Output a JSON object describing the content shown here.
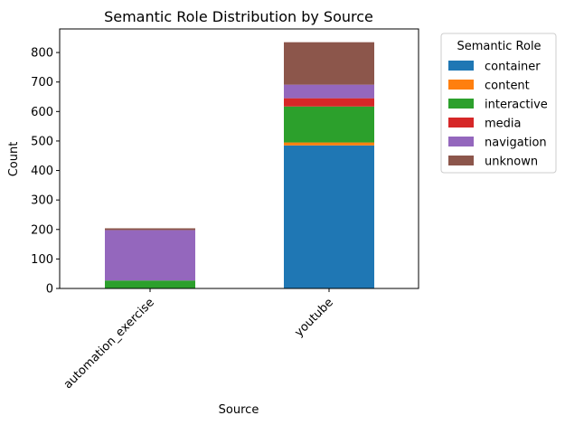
{
  "chart_data": {
    "type": "bar",
    "stacked": true,
    "title": "Semantic Role Distribution by Source",
    "xlabel": "Source",
    "ylabel": "Count",
    "categories": [
      "automation_exercise",
      "youtube"
    ],
    "ylim": [
      0,
      880
    ],
    "yticks": [
      0,
      100,
      200,
      300,
      400,
      500,
      600,
      700,
      800
    ],
    "legend_title": "Semantic Role",
    "legend_position": "outside-right",
    "grid": false,
    "series": [
      {
        "name": "container",
        "color": "#1f77b4",
        "values": [
          0,
          485
        ]
      },
      {
        "name": "content",
        "color": "#ff7f0e",
        "values": [
          0,
          10
        ]
      },
      {
        "name": "interactive",
        "color": "#2ca02c",
        "values": [
          27,
          122
        ]
      },
      {
        "name": "media",
        "color": "#d62728",
        "values": [
          0,
          28
        ]
      },
      {
        "name": "navigation",
        "color": "#9467bd",
        "values": [
          171,
          46
        ]
      },
      {
        "name": "unknown",
        "color": "#8c564b",
        "values": [
          6,
          144
        ]
      }
    ]
  }
}
